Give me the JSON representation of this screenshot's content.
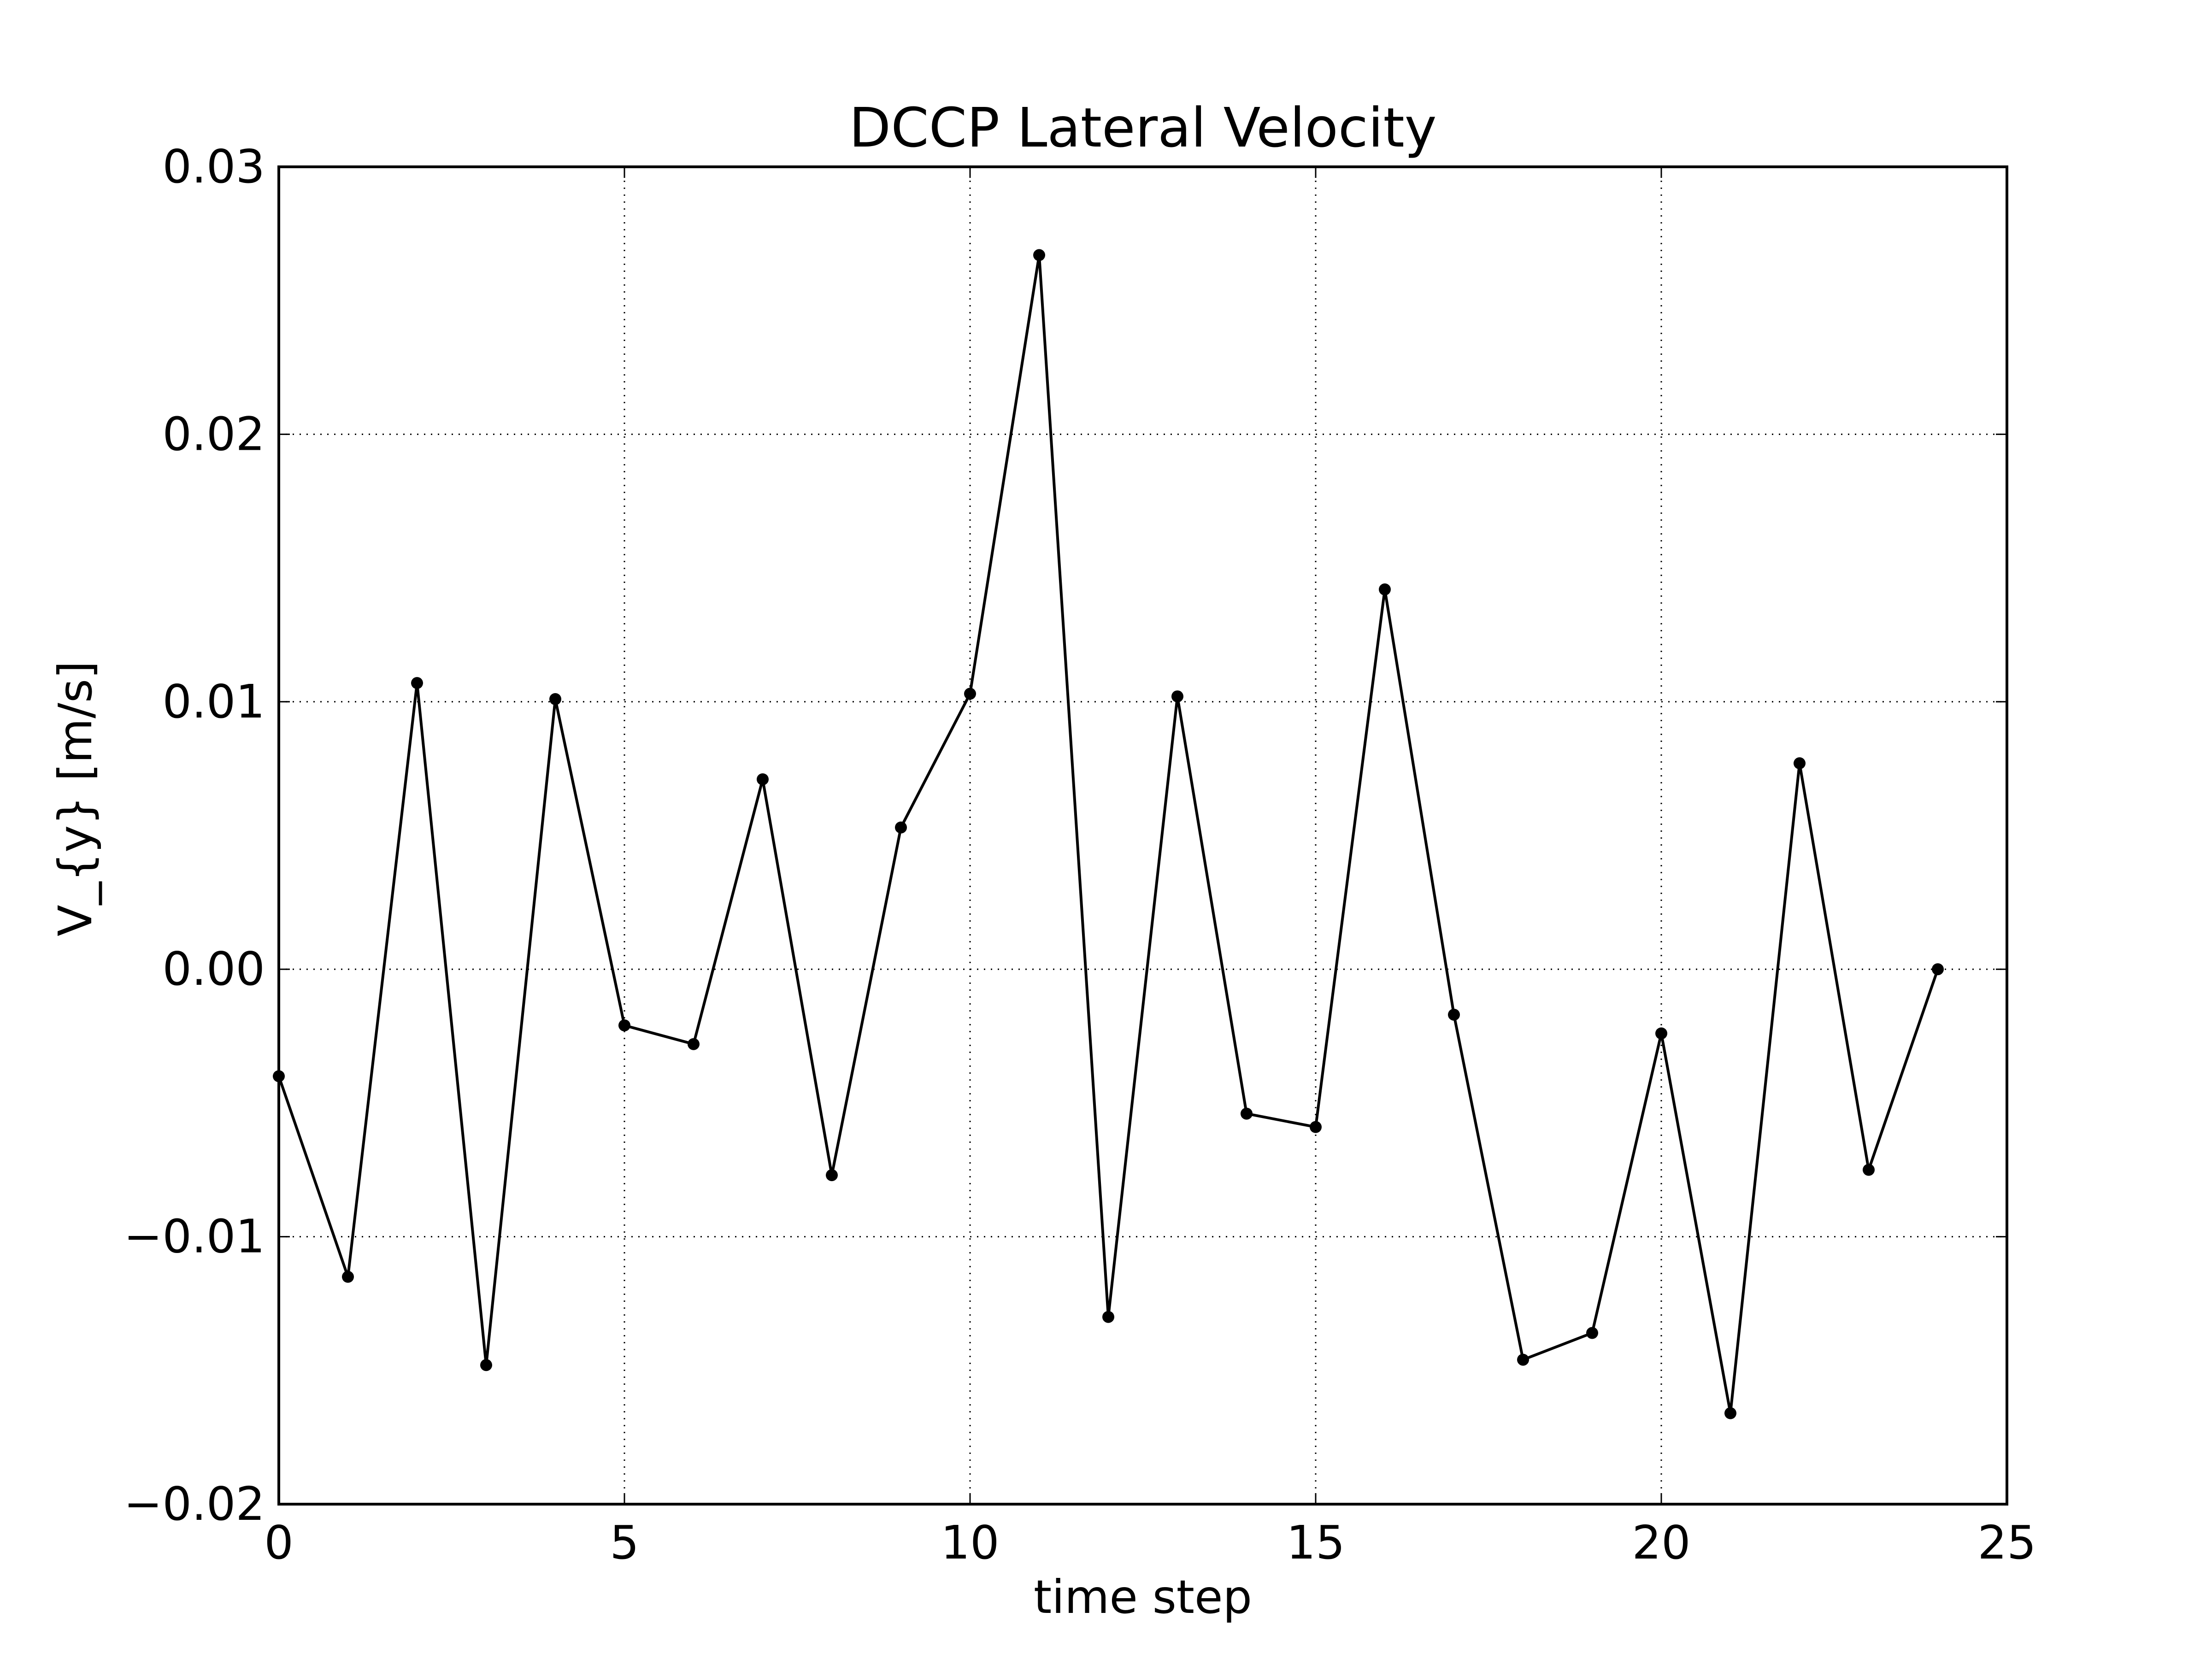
{
  "chart_data": {
    "type": "line",
    "title": "DCCP Lateral Velocity",
    "xlabel": "time step",
    "ylabel": "V_{y} [m/s]",
    "xlim": [
      0,
      25
    ],
    "ylim": [
      -0.02,
      0.03
    ],
    "xticks": [
      0,
      5,
      10,
      15,
      20,
      25
    ],
    "xtick_labels": [
      "0",
      "5",
      "10",
      "15",
      "20",
      "25"
    ],
    "yticks": [
      -0.02,
      -0.01,
      0.0,
      0.01,
      0.02,
      0.03
    ],
    "ytick_labels": [
      "−0.02",
      "−0.01",
      "0.00",
      "0.01",
      "0.02",
      "0.03"
    ],
    "grid": true,
    "grid_style": "dotted",
    "legend": false,
    "series": [
      {
        "color": "#000000",
        "marker": "circle",
        "x": [
          0,
          1,
          2,
          3,
          4,
          5,
          6,
          7,
          8,
          9,
          10,
          11,
          12,
          13,
          14,
          15,
          16,
          17,
          18,
          19,
          20,
          21,
          22,
          23,
          24
        ],
        "y": [
          -0.004,
          -0.0115,
          0.0107,
          -0.0148,
          0.0101,
          -0.0021,
          -0.0028,
          0.0071,
          -0.0077,
          0.0053,
          0.0103,
          0.0267,
          -0.013,
          0.0102,
          -0.0054,
          -0.0059,
          0.0142,
          -0.0017,
          -0.0146,
          -0.0136,
          -0.0024,
          -0.0166,
          0.0077,
          -0.0075,
          0.0
        ]
      }
    ]
  }
}
